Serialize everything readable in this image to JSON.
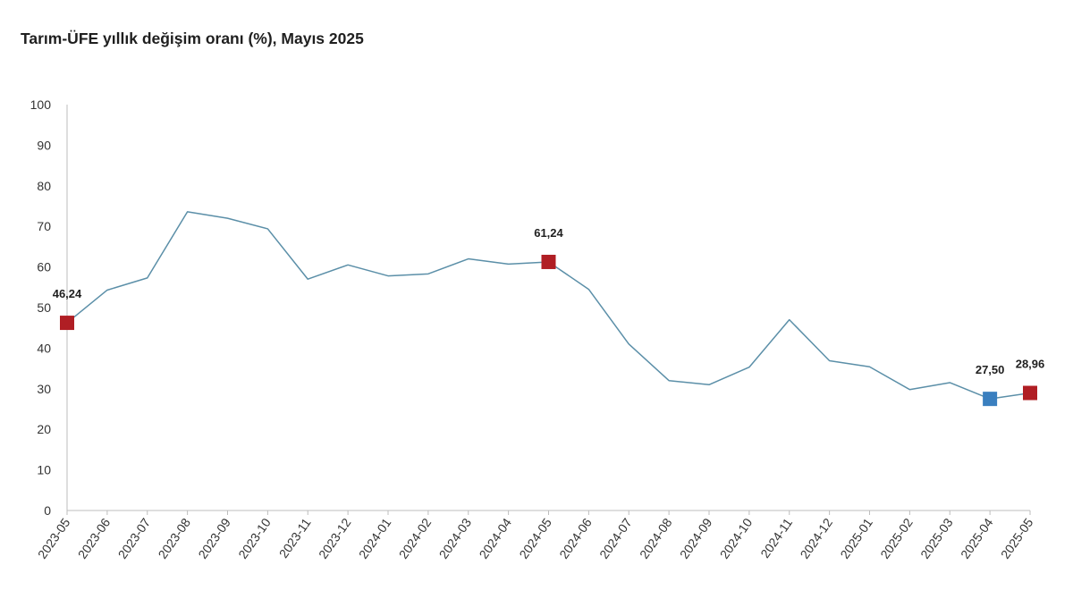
{
  "chart_data": {
    "type": "line",
    "title": "Tarım-ÜFE yıllık değişim oranı (%), Mayıs 2025",
    "xlabel": "",
    "ylabel": "",
    "ylim": [
      0,
      100
    ],
    "yticks": [
      0,
      10,
      20,
      30,
      40,
      50,
      60,
      70,
      80,
      90,
      100
    ],
    "grid": false,
    "categories": [
      "2023-05",
      "2023-06",
      "2023-07",
      "2023-08",
      "2023-09",
      "2023-10",
      "2023-11",
      "2023-12",
      "2024-01",
      "2024-02",
      "2024-03",
      "2024-04",
      "2024-05",
      "2024-06",
      "2024-07",
      "2024-08",
      "2024-09",
      "2024-10",
      "2024-11",
      "2024-12",
      "2025-01",
      "2025-02",
      "2025-03",
      "2025-04",
      "2025-05"
    ],
    "series": [
      {
        "color": "#5b8fa8",
        "values": [
          46.24,
          54.3,
          57.3,
          73.6,
          72.0,
          69.4,
          57.0,
          60.5,
          57.8,
          58.3,
          62.0,
          60.7,
          61.24,
          54.5,
          41.0,
          32.0,
          31.0,
          35.3,
          47.0,
          36.9,
          35.4,
          29.8,
          31.5,
          27.5,
          28.96
        ]
      }
    ],
    "highlights": [
      {
        "index": 0,
        "label": "46,24",
        "color": "#b01e24"
      },
      {
        "index": 12,
        "label": "61,24",
        "color": "#b01e24"
      },
      {
        "index": 23,
        "label": "27,50",
        "color": "#3a7fbf"
      },
      {
        "index": 24,
        "label": "28,96",
        "color": "#b01e24"
      }
    ]
  }
}
